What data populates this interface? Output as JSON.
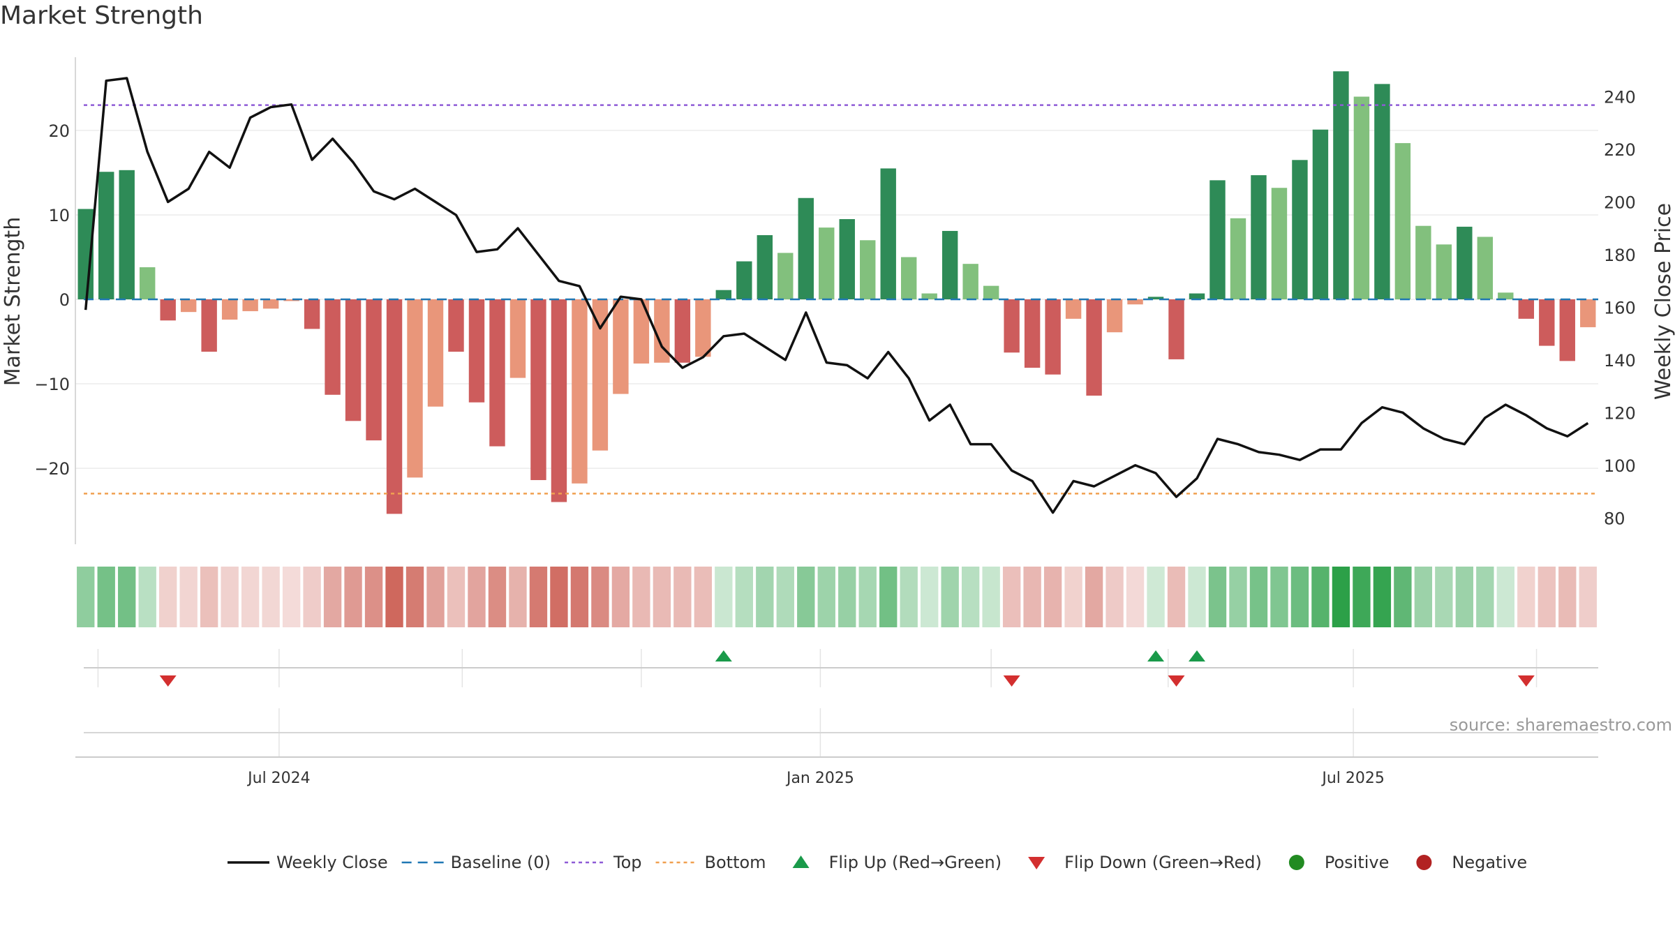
{
  "title": "Market Strength",
  "source": "source: sharemaestro.com",
  "colors": {
    "line": "#111111",
    "baseline": "#1f77b4",
    "top_line": "#8e5bd6",
    "bottom_line": "#f0a050",
    "pos_dark": "#2e8b57",
    "pos_light": "#82c07d",
    "neg_dark": "#cd5c5c",
    "neg_light": "#e9967a",
    "flip_up": "#1a9a4a",
    "flip_down": "#d32f2f",
    "positive_dot": "#228b22",
    "negative_dot": "#b22222"
  },
  "legend": [
    {
      "key": "line",
      "label": "Weekly Close"
    },
    {
      "key": "baseline",
      "label": "Baseline (0)"
    },
    {
      "key": "top",
      "label": "Top"
    },
    {
      "key": "bottom",
      "label": "Bottom"
    },
    {
      "key": "flip_up",
      "label": "Flip Up (Red→Green)"
    },
    {
      "key": "flip_down",
      "label": "Flip Down (Green→Red)"
    },
    {
      "key": "positive",
      "label": "Positive"
    },
    {
      "key": "negative",
      "label": "Negative"
    }
  ],
  "chart_data": {
    "type": "bar",
    "title": "Market Strength",
    "ylabel": "Market Strength",
    "y2label": "Weekly Close Price",
    "ylim": [
      -29,
      29
    ],
    "y2lim": [
      70,
      256
    ],
    "yticks": [
      -20,
      -10,
      0,
      10,
      20
    ],
    "yticklabels": [
      "−20",
      "−10",
      "0",
      "10",
      "20"
    ],
    "y2ticks": [
      80,
      100,
      120,
      140,
      160,
      180,
      200,
      220,
      240
    ],
    "xtick_labels": [
      {
        "label": "Jul 2024",
        "week": 9.4
      },
      {
        "label": "Jan 2025",
        "week": 35.7
      },
      {
        "label": "Jul 2025",
        "week": 61.6
      }
    ],
    "flip_gridlines": [
      0.6,
      9.4,
      18.3,
      27.0,
      35.7,
      44.0,
      52.6,
      61.6,
      70.5
    ],
    "top_level": 23,
    "bottom_level": -23,
    "baseline": 0,
    "strength": [
      10.7,
      15.1,
      15.3,
      3.8,
      -2.5,
      -1.5,
      -6.2,
      -2.4,
      -1.4,
      -1.1,
      -0.2,
      -3.5,
      -11.3,
      -14.4,
      -16.7,
      -25.4,
      -21.1,
      -12.7,
      -6.2,
      -12.2,
      -17.4,
      -9.3,
      -21.4,
      -24.0,
      -21.8,
      -17.9,
      -11.2,
      -7.6,
      -7.5,
      -7.5,
      -6.8,
      1.1,
      4.5,
      7.6,
      5.5,
      12.0,
      8.5,
      9.5,
      7.0,
      15.5,
      5.0,
      0.7,
      8.1,
      4.2,
      1.6,
      -6.3,
      -8.1,
      -8.9,
      -2.3,
      -11.4,
      -3.9,
      -0.6,
      0.3,
      -7.1,
      0.7,
      14.1,
      9.6,
      14.7,
      13.2,
      16.5,
      20.1,
      27.0,
      24.0,
      25.5,
      18.5,
      8.7,
      6.5,
      8.6,
      7.4,
      0.8,
      -2.3,
      -5.5,
      -7.3,
      -3.3
    ],
    "bar_shade": [
      "dark",
      "dark",
      "dark",
      "light",
      "dark",
      "light",
      "dark",
      "light",
      "light",
      "light",
      "light",
      "dark",
      "dark",
      "dark",
      "dark",
      "dark",
      "light",
      "light",
      "dark",
      "dark",
      "dark",
      "light",
      "dark",
      "dark",
      "light",
      "light",
      "light",
      "light",
      "light",
      "dark",
      "light",
      "dark",
      "dark",
      "dark",
      "light",
      "dark",
      "light",
      "dark",
      "light",
      "dark",
      "light",
      "light",
      "dark",
      "light",
      "light",
      "dark",
      "dark",
      "dark",
      "light",
      "dark",
      "light",
      "light",
      "dark",
      "dark",
      "dark",
      "dark",
      "light",
      "dark",
      "light",
      "dark",
      "dark",
      "dark",
      "light",
      "dark",
      "light",
      "light",
      "light",
      "dark",
      "light",
      "light",
      "dark",
      "dark",
      "dark",
      "light"
    ],
    "weekly_close": [
      159,
      246,
      247,
      219,
      200,
      205,
      219,
      213,
      232,
      236,
      237,
      216,
      224,
      215,
      204,
      201,
      205,
      200,
      195,
      181,
      182,
      190,
      180,
      170,
      168,
      152,
      164,
      163,
      145,
      137,
      141,
      149,
      150,
      145,
      140,
      158,
      139,
      138,
      133,
      143,
      133,
      117,
      123,
      108,
      108,
      98,
      94,
      82,
      94,
      92,
      96,
      100,
      97,
      88,
      95,
      110,
      108,
      105,
      104,
      102,
      106,
      106,
      116,
      122,
      120,
      114,
      110,
      108,
      118,
      123,
      119,
      114,
      111,
      116
    ],
    "flips": [
      {
        "week": 4,
        "dir": "down"
      },
      {
        "week": 31,
        "dir": "up"
      },
      {
        "week": 45,
        "dir": "down"
      },
      {
        "week": 52,
        "dir": "up"
      },
      {
        "week": 53,
        "dir": "down"
      },
      {
        "week": 54,
        "dir": "up"
      },
      {
        "week": 70,
        "dir": "down"
      }
    ]
  }
}
